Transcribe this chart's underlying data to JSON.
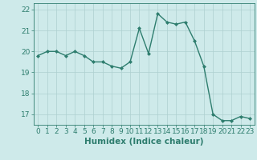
{
  "x": [
    0,
    1,
    2,
    3,
    4,
    5,
    6,
    7,
    8,
    9,
    10,
    11,
    12,
    13,
    14,
    15,
    16,
    17,
    18,
    19,
    20,
    21,
    22,
    23
  ],
  "y": [
    19.8,
    20.0,
    20.0,
    19.8,
    20.0,
    19.8,
    19.5,
    19.5,
    19.3,
    19.2,
    19.5,
    21.1,
    19.9,
    21.8,
    21.4,
    21.3,
    21.4,
    20.5,
    19.3,
    17.0,
    16.7,
    16.7,
    16.9,
    16.8
  ],
  "line_color": "#2e7d6e",
  "marker": "D",
  "marker_size": 2.0,
  "bg_color": "#ceeaea",
  "grid_color": "#aed0d0",
  "tick_color": "#2e7d6e",
  "xlabel": "Humidex (Indice chaleur)",
  "ylim": [
    16.5,
    22.3
  ],
  "yticks": [
    17,
    18,
    19,
    20,
    21,
    22
  ],
  "xlim": [
    -0.5,
    23.5
  ],
  "xticks": [
    0,
    1,
    2,
    3,
    4,
    5,
    6,
    7,
    8,
    9,
    10,
    11,
    12,
    13,
    14,
    15,
    16,
    17,
    18,
    19,
    20,
    21,
    22,
    23
  ],
  "xlabel_fontsize": 7.5,
  "tick_fontsize": 6.5,
  "line_width": 1.0
}
